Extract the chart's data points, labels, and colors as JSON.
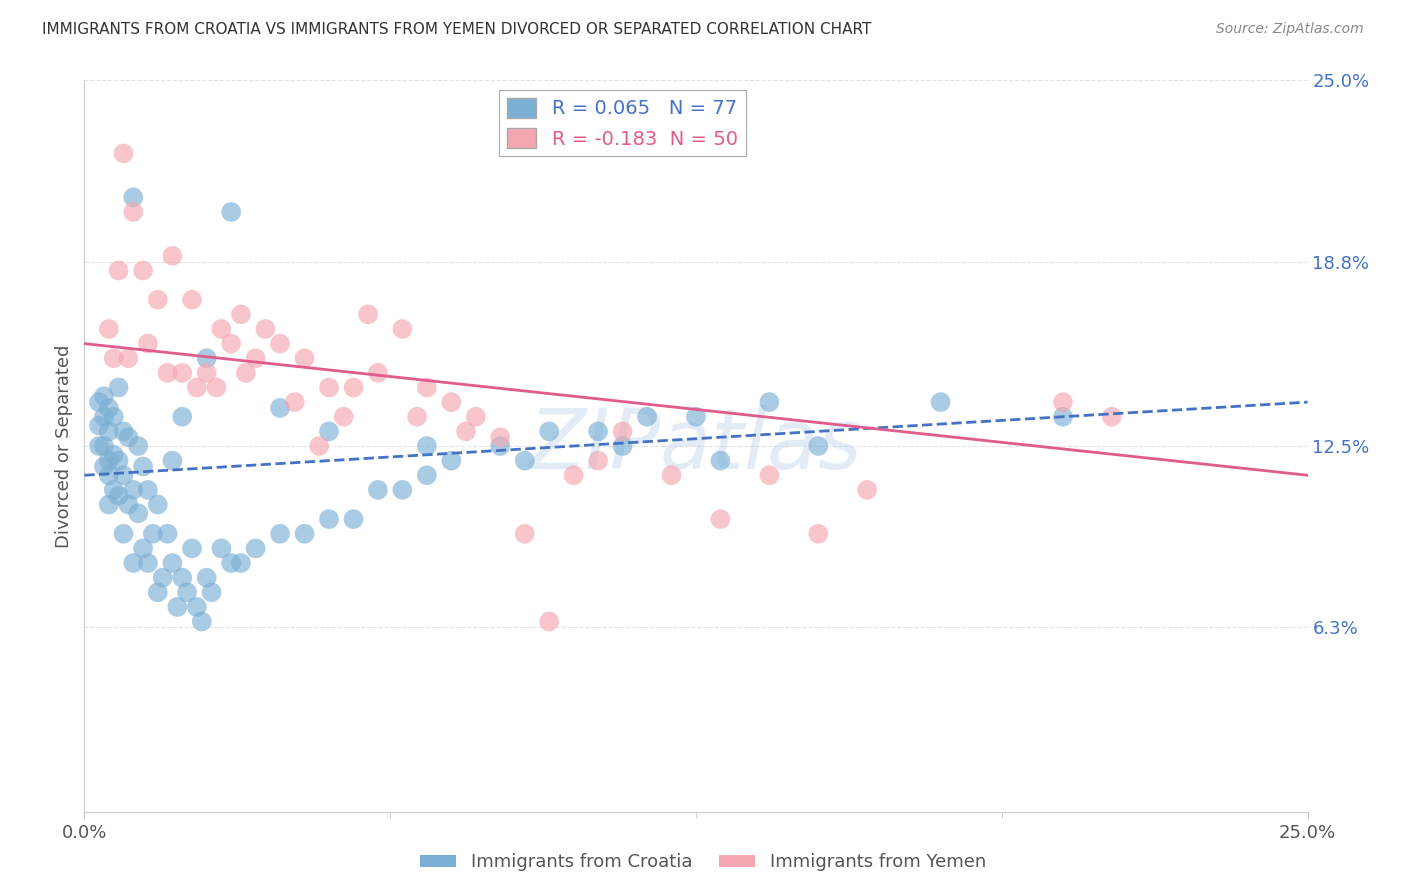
{
  "title": "IMMIGRANTS FROM CROATIA VS IMMIGRANTS FROM YEMEN DIVORCED OR SEPARATED CORRELATION CHART",
  "source": "Source: ZipAtlas.com",
  "ylabel": "Divorced or Separated",
  "x_legend1": "Immigrants from Croatia",
  "x_legend2": "Immigrants from Yemen",
  "R1": 0.065,
  "N1": 77,
  "R2": -0.183,
  "N2": 50,
  "xlim": [
    0.0,
    25.0
  ],
  "ylim": [
    0.0,
    25.0
  ],
  "yticks": [
    6.3,
    12.5,
    18.8,
    25.0
  ],
  "xticks": [
    0.0,
    25.0
  ],
  "color_croatia": "#7bafd4",
  "color_yemen": "#f4a7b0",
  "line_color_croatia": "#4472c4",
  "line_color_yemen": "#e05c8a",
  "background_color": "#ffffff",
  "grid_color": "#cccccc",
  "croatia_x": [
    0.3,
    0.3,
    0.3,
    0.4,
    0.4,
    0.4,
    0.4,
    0.5,
    0.5,
    0.5,
    0.5,
    0.5,
    0.6,
    0.6,
    0.6,
    0.7,
    0.7,
    0.7,
    0.8,
    0.8,
    0.8,
    0.9,
    0.9,
    1.0,
    1.0,
    1.0,
    1.1,
    1.1,
    1.2,
    1.2,
    1.3,
    1.3,
    1.4,
    1.5,
    1.5,
    1.6,
    1.7,
    1.8,
    1.9,
    2.0,
    2.1,
    2.2,
    2.3,
    2.4,
    2.5,
    2.6,
    2.8,
    3.0,
    3.2,
    3.5,
    4.0,
    4.5,
    5.0,
    5.5,
    6.5,
    7.0,
    7.5,
    8.5,
    9.5,
    10.5,
    11.5,
    12.5,
    14.0,
    17.5,
    1.8,
    2.0,
    2.5,
    3.0,
    4.0,
    5.0,
    6.0,
    7.0,
    9.0,
    11.0,
    13.0,
    15.0,
    20.0
  ],
  "croatia_y": [
    12.5,
    13.2,
    14.0,
    11.8,
    12.5,
    13.5,
    14.2,
    10.5,
    11.5,
    12.0,
    13.0,
    13.8,
    11.0,
    12.2,
    13.5,
    10.8,
    12.0,
    14.5,
    9.5,
    11.5,
    13.0,
    10.5,
    12.8,
    8.5,
    11.0,
    21.0,
    10.2,
    12.5,
    9.0,
    11.8,
    8.5,
    11.0,
    9.5,
    7.5,
    10.5,
    8.0,
    9.5,
    8.5,
    7.0,
    8.0,
    7.5,
    9.0,
    7.0,
    6.5,
    8.0,
    7.5,
    9.0,
    8.5,
    8.5,
    9.0,
    9.5,
    9.5,
    10.0,
    10.0,
    11.0,
    11.5,
    12.0,
    12.5,
    13.0,
    13.0,
    13.5,
    13.5,
    14.0,
    14.0,
    12.0,
    13.5,
    15.5,
    20.5,
    13.8,
    13.0,
    11.0,
    12.5,
    12.0,
    12.5,
    12.0,
    12.5,
    13.5
  ],
  "yemen_x": [
    0.5,
    0.7,
    0.8,
    1.0,
    1.2,
    1.5,
    1.8,
    2.0,
    2.2,
    2.5,
    2.8,
    3.0,
    3.2,
    3.5,
    4.0,
    4.5,
    5.0,
    5.5,
    6.0,
    6.5,
    7.0,
    7.5,
    8.0,
    9.0,
    10.0,
    11.0,
    12.0,
    14.0,
    15.0,
    20.0,
    0.6,
    0.9,
    1.3,
    1.7,
    2.3,
    2.7,
    3.3,
    3.7,
    4.3,
    4.8,
    5.3,
    5.8,
    6.8,
    7.8,
    8.5,
    9.5,
    10.5,
    13.0,
    21.0,
    16.0
  ],
  "yemen_y": [
    16.5,
    18.5,
    22.5,
    20.5,
    18.5,
    17.5,
    19.0,
    15.0,
    17.5,
    15.0,
    16.5,
    16.0,
    17.0,
    15.5,
    16.0,
    15.5,
    14.5,
    14.5,
    15.0,
    16.5,
    14.5,
    14.0,
    13.5,
    9.5,
    11.5,
    13.0,
    11.5,
    11.5,
    9.5,
    14.0,
    15.5,
    15.5,
    16.0,
    15.0,
    14.5,
    14.5,
    15.0,
    16.5,
    14.0,
    12.5,
    13.5,
    17.0,
    13.5,
    13.0,
    12.8,
    6.5,
    12.0,
    10.0,
    13.5,
    11.0
  ]
}
